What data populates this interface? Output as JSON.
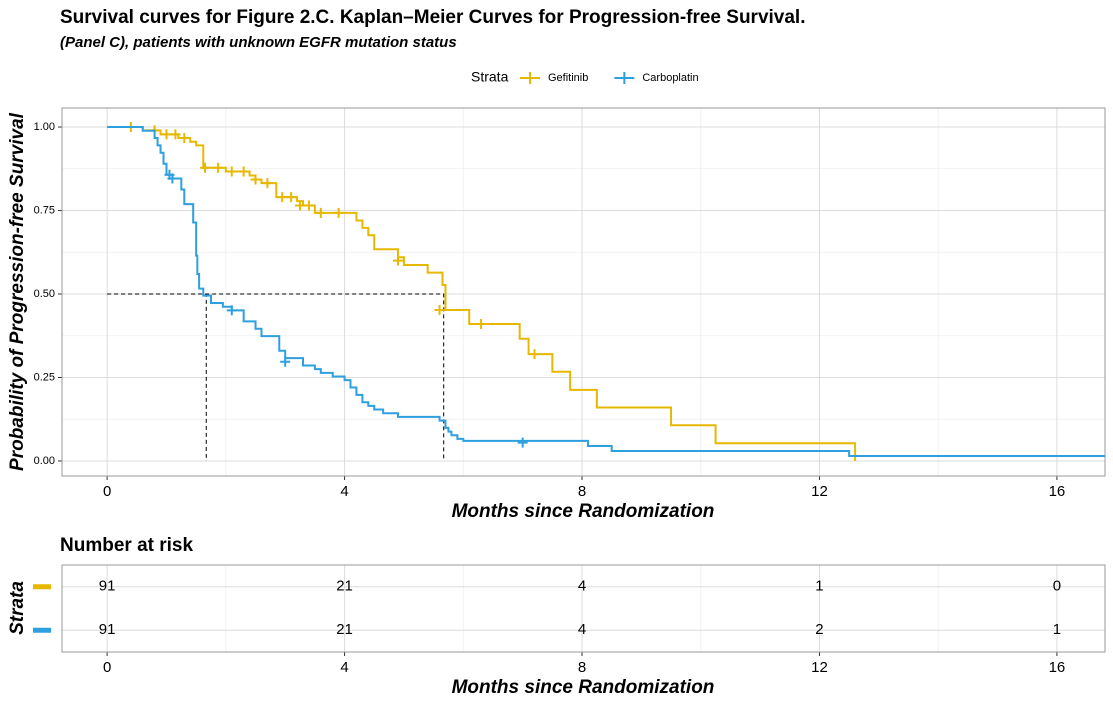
{
  "chart_data": [
    {
      "type": "step",
      "title": "Survival curves for Figure 2.C. Kaplan–Meier Curves for Progression-free Survival.",
      "subtitle": "(Panel C), patients with unknown EGFR mutation status",
      "legend_title": "Strata",
      "xlabel": "Months since Randomization",
      "ylabel": "Probability of Progression-free Survival",
      "xlim": [
        -0.76,
        16.81
      ],
      "xticks": [
        0,
        4,
        8,
        12,
        16
      ],
      "ylim": [
        -0.045,
        1.057
      ],
      "yticks": [
        {
          "value": 0,
          "label": "0.00"
        },
        {
          "value": 0.25,
          "label": "0.25"
        },
        {
          "value": 0.5,
          "label": "0.50"
        },
        {
          "value": 0.75,
          "label": "0.75"
        },
        {
          "value": 1,
          "label": "1.00"
        }
      ],
      "grid": true,
      "median_lines": [
        {
          "x": 1.67,
          "y": 0.5
        },
        {
          "x": 5.67,
          "y": 0.5
        }
      ],
      "series": [
        {
          "name": "Gefitinib",
          "color": "#E7B800",
          "x": [
            0,
            0.6,
            0.9,
            1.2,
            1.4,
            1.5,
            1.62,
            2.0,
            2.4,
            2.5,
            2.6,
            2.85,
            3.2,
            3.3,
            3.5,
            4.2,
            4.3,
            4.4,
            4.5,
            4.9,
            5.0,
            5.4,
            5.65,
            5.7,
            6.1,
            6.95,
            7.1,
            7.5,
            7.8,
            8.25,
            9.5,
            10.25,
            12.6
          ],
          "values": [
            1.0,
            0.99,
            0.978,
            0.967,
            0.956,
            0.945,
            0.878,
            0.867,
            0.855,
            0.843,
            0.832,
            0.79,
            0.778,
            0.765,
            0.743,
            0.72,
            0.698,
            0.676,
            0.634,
            0.61,
            0.587,
            0.564,
            0.527,
            0.452,
            0.41,
            0.366,
            0.32,
            0.267,
            0.213,
            0.16,
            0.107,
            0.053,
            0.0
          ],
          "censor_x": [
            0.4,
            0.8,
            1.0,
            1.15,
            1.3,
            1.65,
            1.87,
            2.1,
            2.3,
            2.5,
            2.7,
            2.95,
            3.1,
            3.25,
            3.4,
            3.6,
            3.9,
            4.9,
            5.6,
            6.3,
            7.2
          ],
          "censor_values": [
            1.0,
            0.99,
            0.978,
            0.978,
            0.967,
            0.878,
            0.878,
            0.867,
            0.867,
            0.843,
            0.832,
            0.79,
            0.79,
            0.765,
            0.765,
            0.743,
            0.743,
            0.6,
            0.452,
            0.41,
            0.32
          ]
        },
        {
          "name": "Carboplatin",
          "color": "#2E9FDF",
          "x": [
            0,
            0.6,
            0.8,
            0.85,
            0.9,
            0.95,
            1.0,
            1.1,
            1.25,
            1.3,
            1.45,
            1.5,
            1.52,
            1.55,
            1.62,
            1.75,
            1.95,
            2.1,
            2.3,
            2.5,
            2.6,
            2.9,
            3.0,
            3.3,
            3.5,
            3.6,
            3.8,
            4.0,
            4.1,
            4.2,
            4.3,
            4.4,
            4.5,
            4.65,
            4.9,
            5.6,
            5.7,
            5.75,
            5.8,
            5.9,
            6.0,
            8.1,
            8.5,
            12.5,
            16.81
          ],
          "values": [
            1.0,
            0.989,
            0.967,
            0.945,
            0.923,
            0.89,
            0.857,
            0.846,
            0.813,
            0.769,
            0.714,
            0.615,
            0.56,
            0.516,
            0.495,
            0.473,
            0.462,
            0.451,
            0.418,
            0.396,
            0.374,
            0.33,
            0.308,
            0.286,
            0.275,
            0.264,
            0.253,
            0.242,
            0.22,
            0.198,
            0.176,
            0.165,
            0.154,
            0.143,
            0.132,
            0.121,
            0.099,
            0.088,
            0.077,
            0.066,
            0.06,
            0.045,
            0.03,
            0.015,
            0.015
          ],
          "censor_x": [
            1.05,
            1.1,
            2.1,
            3.0,
            7.0
          ],
          "censor_values": [
            0.857,
            0.846,
            0.451,
            0.297,
            0.055
          ]
        }
      ]
    },
    {
      "type": "table",
      "title": "Number at risk",
      "xlabel": "Months since Randomization",
      "ylabel": "Strata",
      "xlim": [
        -0.76,
        16.81
      ],
      "xticks": [
        0,
        4,
        8,
        12,
        16
      ],
      "x": [
        0,
        4,
        8,
        12,
        16
      ],
      "series": [
        {
          "color": "#E7B800",
          "values": [
            91,
            21,
            4,
            1,
            0
          ]
        },
        {
          "color": "#2E9FDF",
          "values": [
            91,
            21,
            4,
            2,
            1
          ]
        }
      ]
    }
  ]
}
